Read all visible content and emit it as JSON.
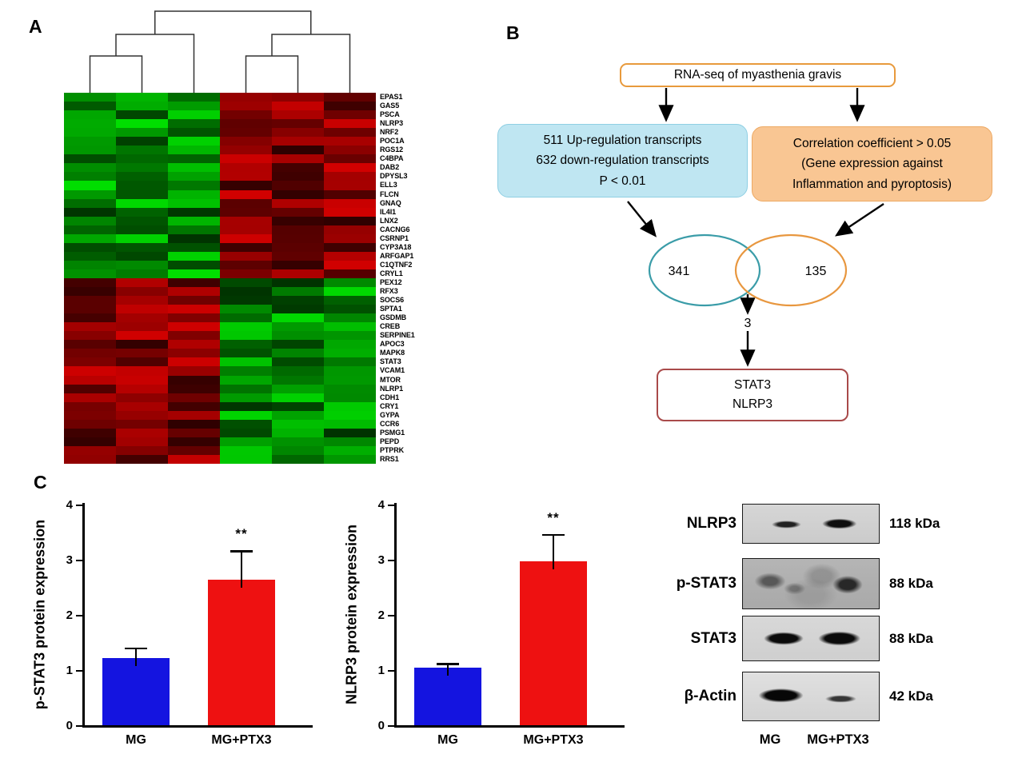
{
  "panels": {
    "a": "A",
    "b": "B",
    "c": "C"
  },
  "heatmap": {
    "n_cols": 6,
    "split_row": 21,
    "down_color": "#00c800",
    "up_color": "#c80000",
    "pattern": "rows 1-21: green left 3 columns / red right 3 columns; rows 22-42: red left 3 columns / green right 3 columns",
    "genes": [
      "EPAS1",
      "GAS5",
      "PSCA",
      "NLRP3",
      "NRF2",
      "POC1A",
      "RGS12",
      "C4BPA",
      "DAB2",
      "DPYSL3",
      "ELL3",
      "FLCN",
      "GNAQ",
      "IL4I1",
      "LNX2",
      "CACNG6",
      "CSRNP1",
      "CYP3A18",
      "ARFGAP1",
      "C1QTNF2",
      "CRYL1",
      "PEX12",
      "RFX3",
      "SOCS6",
      "SPTA1",
      "GSDMB",
      "CREB",
      "SERPINE1",
      "APOC3",
      "MAPK8",
      "STAT3",
      "VCAM1",
      "MTOR",
      "NLRP1",
      "CDH1",
      "CRY1",
      "GYPA",
      "CCR6",
      "PSMG1",
      "PEPD",
      "PTPRK",
      "RRS1"
    ]
  },
  "flowchart": {
    "top_box": "RNA-seq of myasthenia gravis",
    "left_box_lines": [
      "511 Up-regulation transcripts",
      "632 down-regulation transcripts",
      "P < 0.01"
    ],
    "right_box_lines": [
      "Correlation coefficient > 0.05",
      "(Gene expression against",
      "Inflammation and pyroptosis)"
    ],
    "venn": {
      "left_count": "341",
      "right_count": "135",
      "overlap_count": "3"
    },
    "result_box_lines": [
      "STAT3",
      "NLRP3"
    ]
  },
  "chart_data": [
    {
      "type": "bar",
      "ylabel": "p-STAT3 protein expression",
      "categories": [
        "MG",
        "MG+PTX3"
      ],
      "values": [
        1.22,
        2.64
      ],
      "error_top": [
        1.41,
        3.17
      ],
      "bar_colors": [
        "#1414e0",
        "#ee1111"
      ],
      "significance": [
        "",
        "**"
      ],
      "ylim": [
        0,
        4
      ],
      "yticks": [
        0,
        1,
        2,
        3,
        4
      ]
    },
    {
      "type": "bar",
      "ylabel": "NLRP3 protein expression",
      "categories": [
        "MG",
        "MG+PTX3"
      ],
      "values": [
        1.05,
        2.97
      ],
      "error_top": [
        1.13,
        3.47
      ],
      "bar_colors": [
        "#1414e0",
        "#ee1111"
      ],
      "significance": [
        "",
        "**"
      ],
      "ylim": [
        0,
        4
      ],
      "yticks": [
        0,
        1,
        2,
        3,
        4
      ]
    }
  ],
  "western_blot": {
    "rows": [
      {
        "protein": "NLRP3",
        "kda": "118 kDa"
      },
      {
        "protein": "p-STAT3",
        "kda": "88 kDa"
      },
      {
        "protein": "STAT3",
        "kda": "88 kDa"
      },
      {
        "protein": "β-Actin",
        "kda": "42 kDa"
      }
    ],
    "lanes": [
      "MG",
      "MG+PTX3"
    ]
  }
}
